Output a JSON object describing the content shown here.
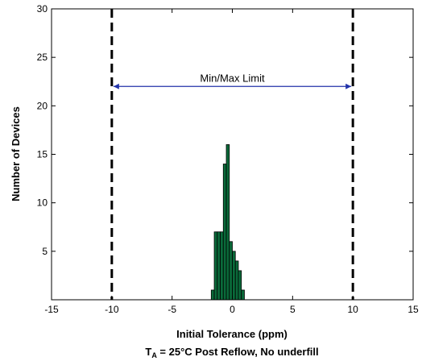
{
  "chart_data": {
    "type": "bar",
    "xlabel": "Initial Tolerance (ppm)",
    "subtitle": {
      "prefix": "T",
      "subscript": "A",
      "rest": " = 25°C Post Reflow, No underfill"
    },
    "ylabel": "Number of Devices",
    "xlim": [
      -15,
      15
    ],
    "ylim": [
      0,
      30
    ],
    "xticks": [
      -15,
      -10,
      -5,
      0,
      5,
      10,
      15
    ],
    "yticks": [
      5,
      10,
      15,
      20,
      25,
      30
    ],
    "grid": false,
    "bar_color": "#0a6a3a",
    "bin_width": 0.25,
    "bins": [
      {
        "x": -1.75,
        "count": 1
      },
      {
        "x": -1.5,
        "count": 7
      },
      {
        "x": -1.25,
        "count": 7
      },
      {
        "x": -1.0,
        "count": 7
      },
      {
        "x": -0.75,
        "count": 14
      },
      {
        "x": -0.5,
        "count": 16
      },
      {
        "x": -0.25,
        "count": 6
      },
      {
        "x": 0.0,
        "count": 5
      },
      {
        "x": 0.25,
        "count": 4
      },
      {
        "x": 0.5,
        "count": 3
      },
      {
        "x": 0.75,
        "count": 1
      }
    ],
    "limit_lines": [
      -10,
      10
    ],
    "annotation": {
      "text": "Min/Max Limit",
      "from": -10,
      "to": 10,
      "y": 22
    }
  }
}
